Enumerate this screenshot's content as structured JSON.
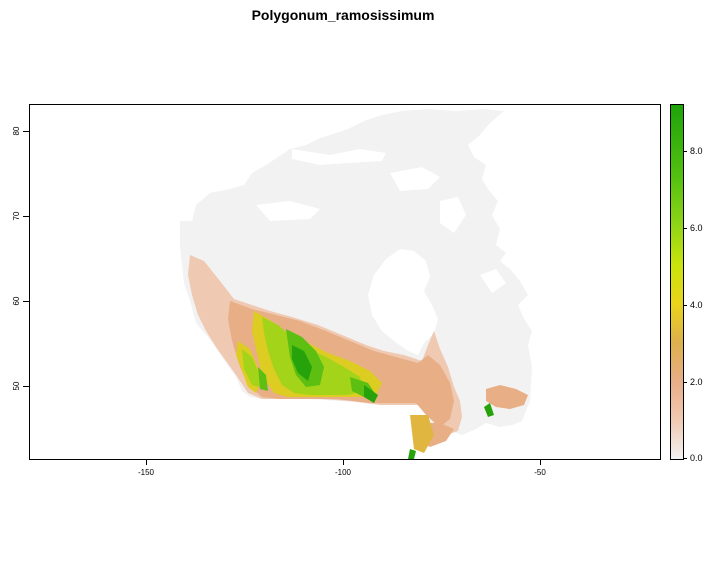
{
  "title": "Polygonum_ramosissimum",
  "x_ticks": [
    "-150",
    "-100",
    "-50"
  ],
  "y_ticks": [
    "80",
    "70",
    "60",
    "50"
  ],
  "legend": {
    "ticks": [
      "8.0",
      "6.0",
      "4.0",
      "2.0",
      "0.0"
    ],
    "min": 0,
    "max": 9.2,
    "colors": [
      "#f2f2f2",
      "#f0c9b2",
      "#e8ae86",
      "#ddb04c",
      "#e9d51a",
      "#c9e30c",
      "#8fd518",
      "#52c010",
      "#1ea30a"
    ]
  },
  "map": {
    "region": "Canada",
    "x_range": [
      -181,
      -22
    ],
    "y_range": [
      41.4,
      83.2
    ],
    "nodata_color": "#f2f2f2"
  }
}
